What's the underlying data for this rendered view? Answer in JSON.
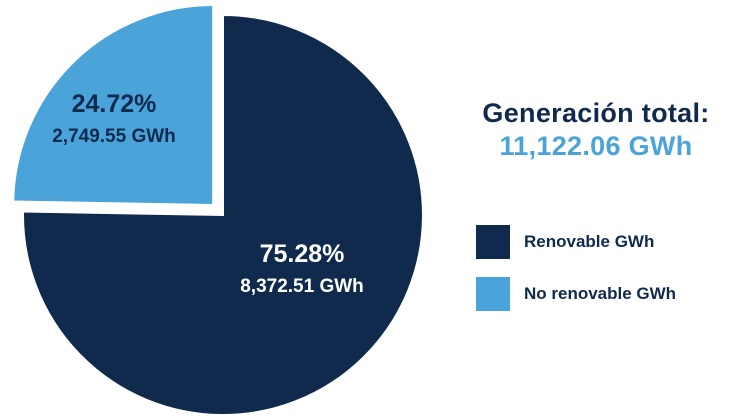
{
  "chart_data": {
    "type": "pie",
    "slices": [
      {
        "name": "Renovable GWh",
        "percent_label": "75.28%",
        "value_label": "8,372.51 GWh",
        "value": 8372.51,
        "percent": 75.28,
        "color": "#0f2a4d"
      },
      {
        "name": "No renovable GWh",
        "percent_label": "24.72%",
        "value_label": "2,749.55 GWh",
        "value": 2749.55,
        "percent": 24.72,
        "color": "#4aa3d9",
        "exploded": true
      }
    ],
    "legend": [
      "Renovable GWh",
      "No renovable GWh"
    ],
    "legend_position": "right"
  },
  "summary": {
    "label": "Generación total:",
    "value": "11,122.06 GWh"
  }
}
